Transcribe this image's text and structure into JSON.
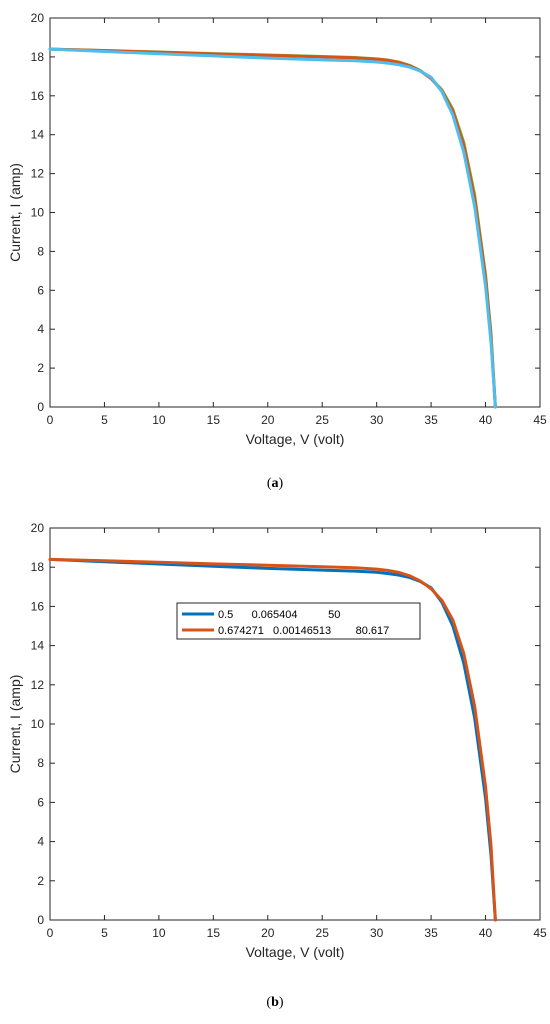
{
  "chart_data": [
    {
      "type": "line",
      "panel": "a",
      "caption_open": "(",
      "caption_letter": "a",
      "caption_close": ")",
      "xlabel": "Voltage, V (volt)",
      "ylabel": "Current, I (amp)",
      "xlim": [
        0,
        45
      ],
      "ylim": [
        0,
        20
      ],
      "xticks": [
        0,
        5,
        10,
        15,
        20,
        25,
        30,
        35,
        40,
        45
      ],
      "yticks": [
        0,
        2,
        4,
        6,
        8,
        10,
        12,
        14,
        16,
        18,
        20
      ],
      "grid": false,
      "legend": null,
      "series": [
        {
          "color": "#77AC30",
          "x": [
            0,
            5,
            10,
            15,
            20,
            25,
            28,
            30,
            31,
            32,
            33,
            34,
            35,
            36,
            37,
            38,
            39,
            40,
            40.5,
            40.9
          ],
          "y": [
            18.4,
            18.33,
            18.25,
            18.17,
            18.1,
            18.02,
            17.97,
            17.9,
            17.84,
            17.74,
            17.57,
            17.3,
            16.9,
            16.3,
            15.3,
            13.6,
            10.9,
            6.8,
            3.8,
            0
          ]
        },
        {
          "color": "#D95319",
          "x": [
            0,
            5,
            10,
            15,
            20,
            25,
            28,
            30,
            31,
            32,
            33,
            34,
            35,
            36,
            37,
            38,
            39,
            40,
            40.5,
            40.9
          ],
          "y": [
            18.4,
            18.32,
            18.24,
            18.15,
            18.08,
            18.0,
            17.95,
            17.88,
            17.82,
            17.72,
            17.55,
            17.28,
            16.88,
            16.25,
            15.2,
            13.45,
            10.7,
            6.6,
            3.6,
            0
          ]
        },
        {
          "color": "#4DBEEE",
          "x": [
            0,
            5,
            10,
            15,
            20,
            25,
            28,
            30,
            31,
            32,
            33,
            34,
            35,
            36,
            37,
            38,
            39,
            40,
            40.5,
            40.9
          ],
          "y": [
            18.4,
            18.28,
            18.16,
            18.05,
            17.94,
            17.85,
            17.8,
            17.74,
            17.68,
            17.6,
            17.48,
            17.27,
            16.95,
            16.2,
            15.0,
            13.1,
            10.3,
            6.2,
            3.3,
            0
          ]
        }
      ]
    },
    {
      "type": "line",
      "panel": "b",
      "caption_open": "(",
      "caption_letter": "b",
      "caption_close": ")",
      "xlabel": "Voltage, V (volt)",
      "ylabel": "Current, I (amp)",
      "xlim": [
        0,
        45
      ],
      "ylim": [
        0,
        20
      ],
      "xticks": [
        0,
        5,
        10,
        15,
        20,
        25,
        30,
        35,
        40,
        45
      ],
      "yticks": [
        0,
        2,
        4,
        6,
        8,
        10,
        12,
        14,
        16,
        18,
        20
      ],
      "grid": false,
      "legend": "center",
      "series": [
        {
          "name": "0.5      0.065404          50",
          "color": "#0072BD",
          "x": [
            0,
            5,
            10,
            15,
            20,
            25,
            28,
            30,
            31,
            32,
            33,
            34,
            35,
            36,
            37,
            38,
            39,
            40,
            40.5,
            40.9
          ],
          "y": [
            18.4,
            18.28,
            18.16,
            18.05,
            17.94,
            17.85,
            17.8,
            17.74,
            17.68,
            17.6,
            17.48,
            17.27,
            16.95,
            16.2,
            15.0,
            13.1,
            10.3,
            6.2,
            3.3,
            0
          ]
        },
        {
          "name": "0.674271   0.00146513        80.617",
          "color": "#D95319",
          "x": [
            0,
            5,
            10,
            15,
            20,
            25,
            28,
            30,
            31,
            32,
            33,
            34,
            35,
            36,
            37,
            38,
            39,
            40,
            40.5,
            40.9
          ],
          "y": [
            18.4,
            18.33,
            18.25,
            18.17,
            18.1,
            18.02,
            17.97,
            17.9,
            17.84,
            17.74,
            17.57,
            17.3,
            16.9,
            16.3,
            15.3,
            13.6,
            10.9,
            6.8,
            3.8,
            0
          ]
        }
      ]
    }
  ]
}
